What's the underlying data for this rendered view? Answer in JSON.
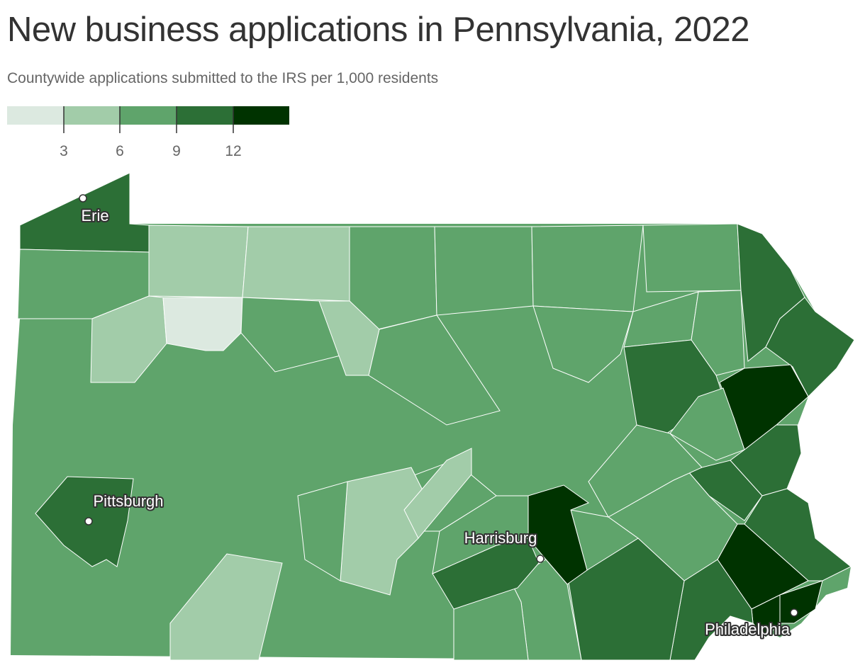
{
  "title": "New business applications in Pennsylvania, 2022",
  "subtitle": "Countywide applications submitted to the IRS per 1,000 residents",
  "legend": {
    "ticks": [
      "3",
      "6",
      "9",
      "12"
    ],
    "colors": [
      "#dce9e0",
      "#a2cca9",
      "#5fa46b",
      "#2c6f36",
      "#003300"
    ]
  },
  "cities": [
    {
      "name": "Erie"
    },
    {
      "name": "Pittsburgh"
    },
    {
      "name": "Harrisburg"
    },
    {
      "name": "Philadelphia"
    }
  ]
}
